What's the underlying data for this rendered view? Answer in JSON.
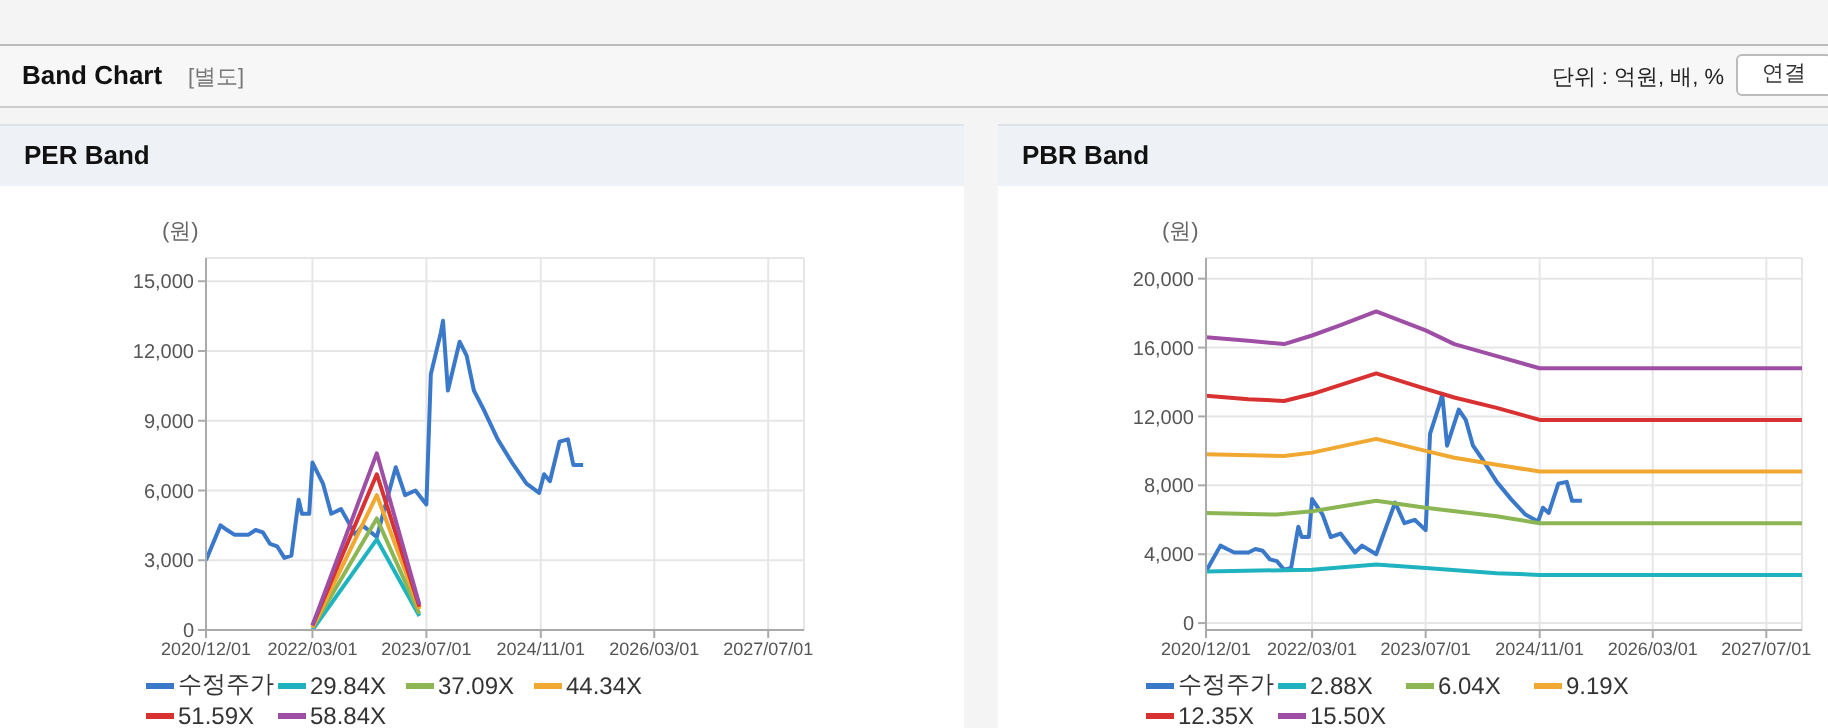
{
  "chart_data": [
    {
      "type": "line",
      "title": "PER Band",
      "ylabel": "(원)",
      "annotations": [
        "Band Chart",
        "[별도]",
        "단위 : 억원, 배, %",
        "연결"
      ],
      "xlim": [
        "2020-12-01",
        "2027-12-01"
      ],
      "xticks": [
        {
          "value": "2020-12-01",
          "label": "2020/12/01"
        },
        {
          "value": "2022-03-01",
          "label": "2022/03/01"
        },
        {
          "value": "2023-07-01",
          "label": "2023/07/01"
        },
        {
          "value": "2024-11-01",
          "label": "2024/11/01"
        },
        {
          "value": "2026-03-01",
          "label": "2026/03/01"
        },
        {
          "value": "2027-07-01",
          "label": "2027/07/01"
        }
      ],
      "ylim": [
        0,
        16000
      ],
      "yticks": [
        {
          "value": 0,
          "label": "0"
        },
        {
          "value": 3000,
          "label": "3,000"
        },
        {
          "value": 6000,
          "label": "6,000"
        },
        {
          "value": 9000,
          "label": "9,000"
        },
        {
          "value": 12000,
          "label": "12,000"
        },
        {
          "value": 15000,
          "label": "15,000"
        }
      ],
      "grid": true,
      "legend": "bottom",
      "marker": "none",
      "line_style": "solid",
      "series": [
        {
          "name": "수정주가",
          "color": "#3a78c9",
          "x": [
            "2020-12-01",
            "2021-02-01",
            "2021-03-01",
            "2021-04-01",
            "2021-06-01",
            "2021-07-01",
            "2021-08-01",
            "2021-09-01",
            "2021-10-01",
            "2021-11-01",
            "2021-12-01",
            "2022-01-01",
            "2022-01-15",
            "2022-02-15",
            "2022-03-01",
            "2022-04-15",
            "2022-05-20",
            "2022-07-01",
            "2022-09-01",
            "2022-10-01",
            "2022-12-01",
            "2023-02-20",
            "2023-04-01",
            "2023-05-15",
            "2023-07-01",
            "2023-07-20",
            "2023-09-01",
            "2023-09-10",
            "2023-10-01",
            "2023-11-20",
            "2023-12-20",
            "2024-01-20",
            "2024-03-01",
            "2024-05-01",
            "2024-07-01",
            "2024-09-01",
            "2024-10-25",
            "2024-11-15",
            "2024-12-10",
            "2025-01-20",
            "2025-02-25",
            "2025-03-20",
            "2025-05-01"
          ],
          "values": [
            3000,
            4500,
            4300,
            4100,
            4100,
            4300,
            4200,
            3700,
            3600,
            3100,
            3200,
            5600,
            5000,
            5000,
            7200,
            6300,
            5000,
            5200,
            4100,
            4500,
            4000,
            7000,
            5800,
            6000,
            5400,
            11000,
            12800,
            13300,
            10300,
            12400,
            11800,
            10300,
            9500,
            8200,
            7200,
            6300,
            5900,
            6700,
            6400,
            8100,
            8200,
            7100,
            7100
          ]
        },
        {
          "name": "29.84X",
          "color": "#1fb3c0",
          "x": [
            "2022-03-01",
            "2022-12-01",
            "2023-06-01"
          ],
          "values": [
            0,
            3900,
            600
          ]
        },
        {
          "name": "37.09X",
          "color": "#8bb653",
          "x": [
            "2022-03-01",
            "2022-12-01",
            "2023-06-01"
          ],
          "values": [
            100,
            4800,
            700
          ]
        },
        {
          "name": "44.34X",
          "color": "#f0a830",
          "x": [
            "2022-03-01",
            "2022-12-01",
            "2023-06-01"
          ],
          "values": [
            100,
            5800,
            900
          ]
        },
        {
          "name": "51.59X",
          "color": "#d83131",
          "x": [
            "2022-03-01",
            "2022-12-01",
            "2023-06-01"
          ],
          "values": [
            200,
            6700,
            1000
          ]
        },
        {
          "name": "58.84X",
          "color": "#9e4fa5",
          "x": [
            "2022-03-01",
            "2022-12-01",
            "2023-06-01"
          ],
          "values": [
            200,
            7600,
            1100
          ]
        }
      ]
    },
    {
      "type": "line",
      "title": "PBR Band",
      "ylabel": "(원)",
      "xlim": [
        "2020-12-01",
        "2027-12-01"
      ],
      "xticks": [
        {
          "value": "2020-12-01",
          "label": "2020/12/01"
        },
        {
          "value": "2022-03-01",
          "label": "2022/03/01"
        },
        {
          "value": "2023-07-01",
          "label": "2023/07/01"
        },
        {
          "value": "2024-11-01",
          "label": "2024/11/01"
        },
        {
          "value": "2026-03-01",
          "label": "2026/03/01"
        },
        {
          "value": "2027-07-01",
          "label": "2027/07/01"
        }
      ],
      "ylim": [
        -400,
        21200
      ],
      "yticks": [
        {
          "value": 0,
          "label": "0"
        },
        {
          "value": 4000,
          "label": "4,000"
        },
        {
          "value": 8000,
          "label": "8,000"
        },
        {
          "value": 12000,
          "label": "12,000"
        },
        {
          "value": 16000,
          "label": "16,000"
        },
        {
          "value": 20000,
          "label": "20,000"
        }
      ],
      "grid": true,
      "legend": "bottom",
      "marker": "none",
      "line_style": "solid",
      "series": [
        {
          "name": "수정주가",
          "color": "#3a78c9",
          "x": [
            "2020-12-01",
            "2021-02-01",
            "2021-03-01",
            "2021-04-01",
            "2021-06-01",
            "2021-07-01",
            "2021-08-01",
            "2021-09-01",
            "2021-10-01",
            "2021-11-01",
            "2021-12-01",
            "2022-01-01",
            "2022-01-15",
            "2022-02-15",
            "2022-03-01",
            "2022-04-15",
            "2022-05-20",
            "2022-07-01",
            "2022-09-01",
            "2022-10-01",
            "2022-12-01",
            "2023-02-20",
            "2023-04-01",
            "2023-05-15",
            "2023-07-01",
            "2023-07-20",
            "2023-09-01",
            "2023-09-10",
            "2023-10-01",
            "2023-11-20",
            "2023-12-20",
            "2024-01-20",
            "2024-03-01",
            "2024-05-01",
            "2024-07-01",
            "2024-09-01",
            "2024-10-25",
            "2024-11-15",
            "2024-12-10",
            "2025-01-20",
            "2025-02-25",
            "2025-03-20",
            "2025-05-01"
          ],
          "values": [
            3000,
            4500,
            4300,
            4100,
            4100,
            4300,
            4200,
            3700,
            3600,
            3100,
            3200,
            5600,
            5000,
            5000,
            7200,
            6300,
            5000,
            5200,
            4100,
            4500,
            4000,
            7000,
            5800,
            6000,
            5400,
            11000,
            12800,
            13300,
            10300,
            12400,
            11800,
            10300,
            9500,
            8200,
            7200,
            6300,
            5900,
            6700,
            6400,
            8100,
            8200,
            7100,
            7100
          ]
        },
        {
          "name": "2.88X",
          "color": "#1fb3c0",
          "x": [
            "2020-12-01",
            "2022-03-01",
            "2022-12-01",
            "2023-07-01",
            "2024-05-01",
            "2024-11-01",
            "2027-12-01"
          ],
          "values": [
            3000,
            3100,
            3400,
            3200,
            2900,
            2800,
            2800
          ]
        },
        {
          "name": "6.04X",
          "color": "#8bb653",
          "x": [
            "2020-12-01",
            "2021-10-01",
            "2022-03-01",
            "2022-12-01",
            "2023-07-01",
            "2024-05-01",
            "2024-11-01",
            "2027-12-01"
          ],
          "values": [
            6400,
            6300,
            6500,
            7100,
            6700,
            6200,
            5800,
            5800
          ]
        },
        {
          "name": "9.19X",
          "color": "#f0a830",
          "x": [
            "2020-12-01",
            "2021-11-01",
            "2022-03-01",
            "2022-12-01",
            "2023-07-01",
            "2023-11-01",
            "2024-05-01",
            "2024-11-01",
            "2027-12-01"
          ],
          "values": [
            9800,
            9700,
            9900,
            10700,
            10000,
            9600,
            9200,
            8800,
            8800
          ]
        },
        {
          "name": "12.35X",
          "color": "#d83131",
          "x": [
            "2020-12-01",
            "2021-06-01",
            "2021-11-01",
            "2022-03-01",
            "2022-12-01",
            "2023-07-01",
            "2023-11-01",
            "2024-05-01",
            "2024-11-01",
            "2027-12-01"
          ],
          "values": [
            13200,
            13000,
            12900,
            13300,
            14500,
            13600,
            13100,
            12500,
            11800,
            11800
          ]
        },
        {
          "name": "15.50X",
          "color": "#9e4fa5",
          "x": [
            "2020-12-01",
            "2021-06-01",
            "2021-11-01",
            "2022-03-01",
            "2022-07-01",
            "2022-12-01",
            "2023-07-01",
            "2023-11-01",
            "2024-05-01",
            "2024-11-01",
            "2027-12-01"
          ],
          "values": [
            16600,
            16400,
            16200,
            16700,
            17300,
            18100,
            17000,
            16200,
            15500,
            14800,
            14800
          ]
        }
      ]
    }
  ]
}
